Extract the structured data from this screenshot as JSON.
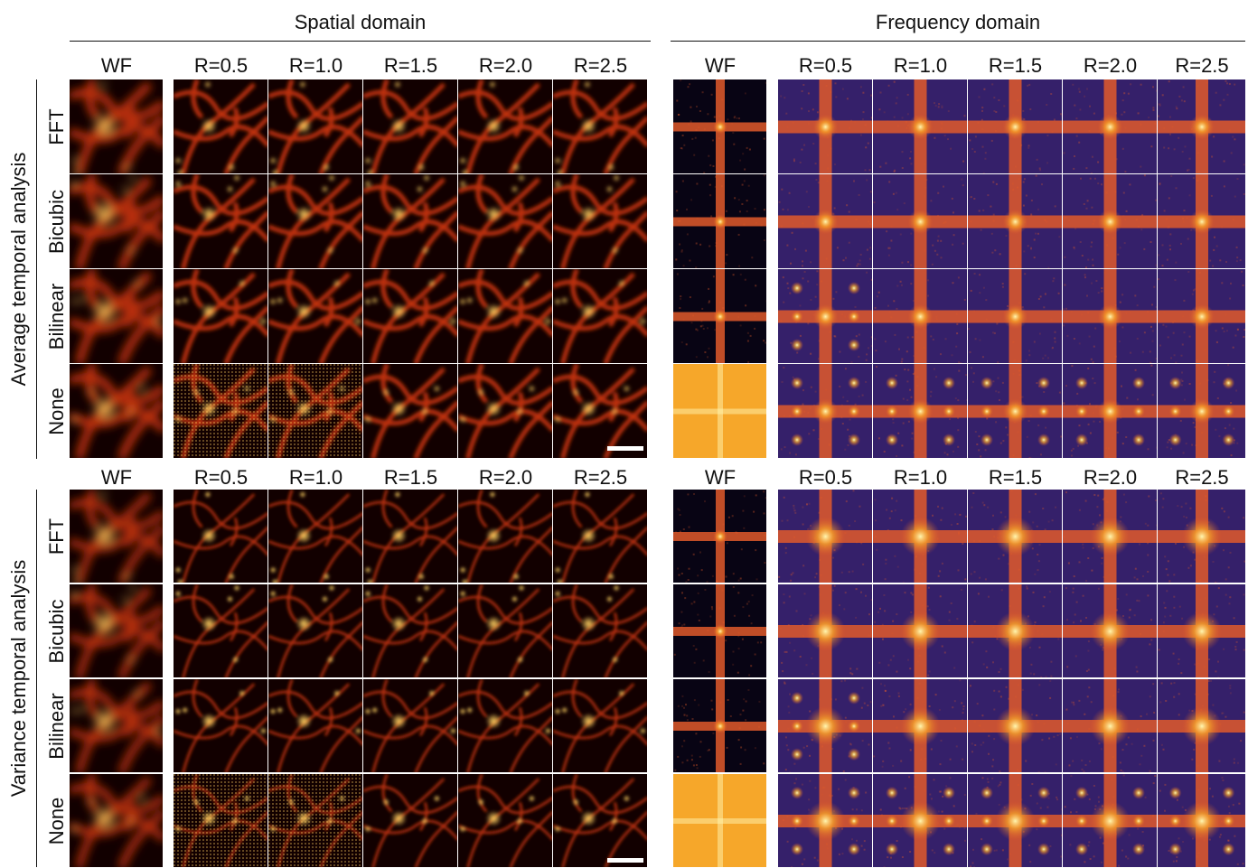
{
  "headers": {
    "spatial": "Spatial domain",
    "frequency": "Frequency domain"
  },
  "column_labels": [
    "WF",
    "R=0.5",
    "R=1.0",
    "R=1.5",
    "R=2.0",
    "R=2.5"
  ],
  "row_labels": [
    "FFT",
    "Bicubic",
    "Bilinear",
    "None"
  ],
  "sections": [
    {
      "label": "Average temporal analysis"
    },
    {
      "label": "Variance temporal analysis"
    }
  ],
  "colors": {
    "spatial_background": "#120000",
    "spatial_structure": "#c0320a",
    "spatial_highlight": "#ffd060",
    "fourier_background": "#35206a",
    "fourier_dark": "#080414",
    "fourier_streak": "#e05a2a",
    "fourier_center": "#fff6b0",
    "fourier_flat": "#f6a72a",
    "scalebar": "#ffffff"
  }
}
